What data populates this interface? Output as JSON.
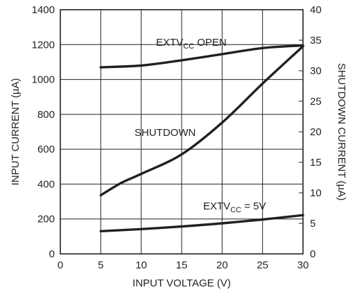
{
  "chart_data": {
    "type": "line",
    "xlabel": "INPUT VOLTAGE (V)",
    "ylabel": "INPUT CURRENT (µA)",
    "y2label": "SHUTDOWN CURRENT (µA)",
    "xlim": [
      0,
      30
    ],
    "ylim": [
      0,
      1400
    ],
    "y2lim": [
      0,
      40
    ],
    "xticks": [
      "0",
      "5",
      "10",
      "15",
      "20",
      "25",
      "30"
    ],
    "yticks": [
      "0",
      "200",
      "400",
      "600",
      "800",
      "1000",
      "1200",
      "1400"
    ],
    "y2ticks": [
      "0",
      "5",
      "10",
      "15",
      "20",
      "25",
      "30",
      "35",
      "40"
    ],
    "grid": true,
    "series": [
      {
        "name": "EXTVCC OPEN",
        "axis": "left",
        "x": [
          5,
          10,
          15,
          20,
          25,
          30
        ],
        "y": [
          1070,
          1080,
          1110,
          1145,
          1180,
          1195
        ]
      },
      {
        "name": "EXTVCC = 5V",
        "axis": "left",
        "x": [
          5,
          10,
          15,
          20,
          25,
          30
        ],
        "y": [
          130,
          142,
          157,
          175,
          197,
          222
        ]
      },
      {
        "name": "SHUTDOWN",
        "axis": "right",
        "x": [
          5,
          7.5,
          10,
          15,
          20,
          25,
          30
        ],
        "y": [
          9.6,
          11.6,
          13.1,
          16.3,
          21.5,
          27.9,
          34.0
        ]
      }
    ],
    "annotations": [
      {
        "id": "extvcc-open",
        "parts": [
          "EXTV",
          "CC",
          " OPEN"
        ]
      },
      {
        "id": "shutdown",
        "parts": [
          "SHUTDOWN"
        ]
      },
      {
        "id": "extvcc-5v",
        "parts": [
          "EXTV",
          "CC",
          " = 5V"
        ]
      }
    ]
  }
}
